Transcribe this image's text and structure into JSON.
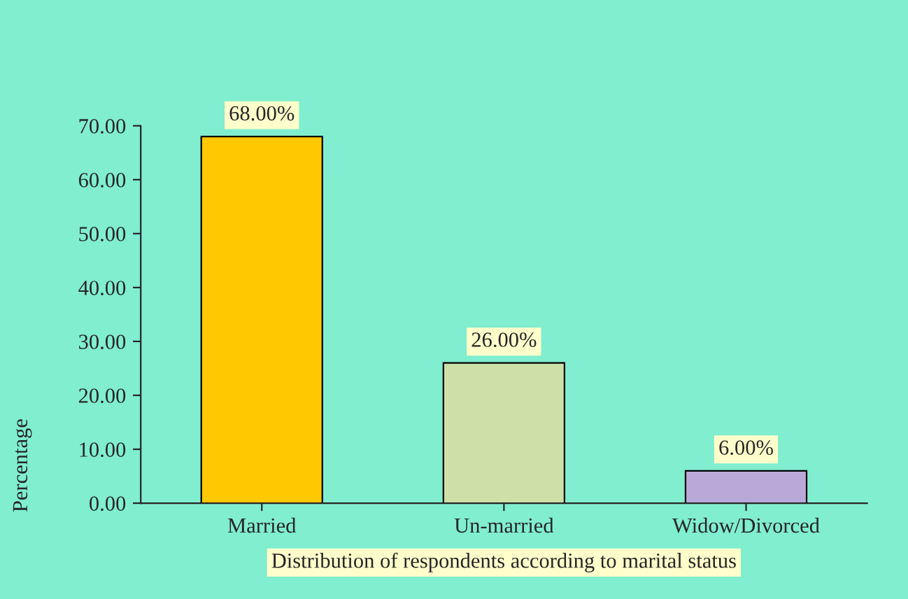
{
  "chart_data": {
    "type": "bar",
    "xlabel": "Distribution of respondents according to marital status",
    "ylabel": "Percentage",
    "categories": [
      "Married",
      "Un-married",
      "Widow/Divorced"
    ],
    "values": [
      68,
      26,
      6
    ],
    "colors": [
      "#ffc800",
      "#cde0a8",
      "#b9a9d9"
    ],
    "value_labels": [
      "68.00%",
      "26.00%",
      "6.00%"
    ],
    "ylim": [
      0,
      70
    ],
    "yticks": [
      {
        "value": 0,
        "label": "0.00"
      },
      {
        "value": 10,
        "label": "10.00"
      },
      {
        "value": 20,
        "label": "20.00"
      },
      {
        "value": 30,
        "label": "30.00"
      },
      {
        "value": 40,
        "label": "40.00"
      },
      {
        "value": 50,
        "label": "50.00"
      },
      {
        "value": 60,
        "label": "60.00"
      },
      {
        "value": 70,
        "label": "70.00"
      }
    ],
    "grid": false,
    "legend": false
  }
}
